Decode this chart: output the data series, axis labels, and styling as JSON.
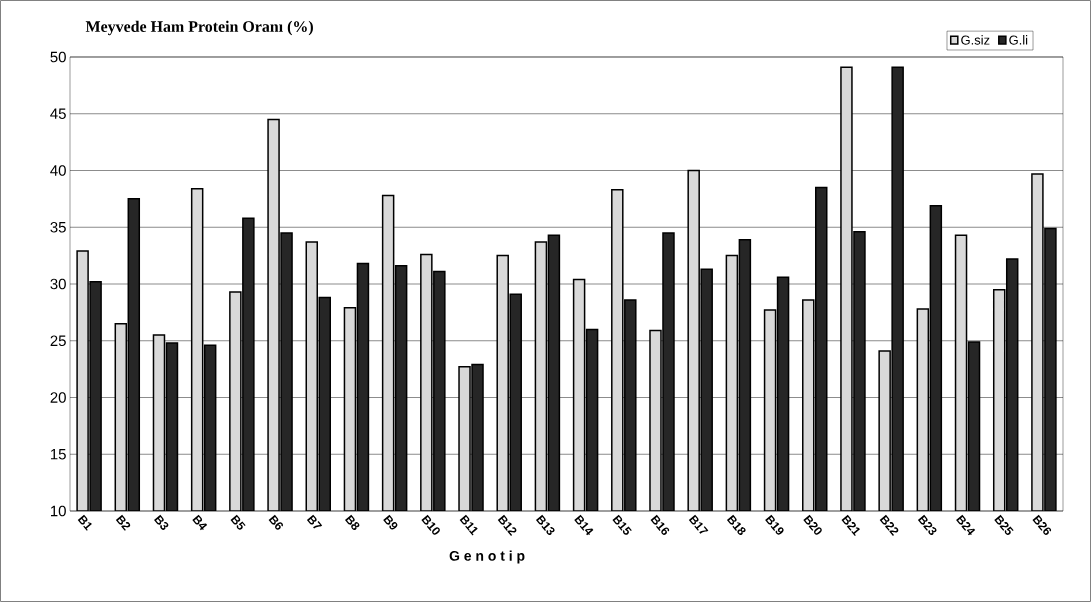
{
  "chart_data": {
    "type": "bar",
    "title": "Meyvede Ham Protein  Oranı (%)",
    "xlabel": "G e n o t i p",
    "categories": [
      "B1",
      "B2",
      "B3",
      "B4",
      "B5",
      "B6",
      "B7",
      "B8",
      "B9",
      "B10",
      "B11",
      "B12",
      "B13",
      "B14",
      "B15",
      "B16",
      "B17",
      "B18",
      "B19",
      "B20",
      "B21",
      "B22",
      "B23",
      "B24",
      "B25",
      "B26"
    ],
    "series": [
      {
        "name": "G.siz",
        "color": "#d9d9d9",
        "values": [
          32.9,
          26.5,
          25.5,
          38.4,
          29.3,
          44.5,
          33.7,
          27.9,
          37.8,
          32.6,
          22.7,
          32.5,
          33.7,
          30.4,
          38.3,
          25.9,
          40.0,
          32.5,
          27.7,
          28.6,
          49.1,
          24.1,
          27.8,
          34.3,
          29.5,
          39.7
        ]
      },
      {
        "name": "G.li",
        "color": "#262626",
        "values": [
          30.2,
          37.5,
          24.8,
          24.6,
          35.8,
          34.5,
          28.8,
          31.8,
          31.6,
          31.1,
          22.9,
          29.1,
          34.3,
          26.0,
          28.6,
          34.5,
          31.3,
          33.9,
          30.6,
          38.5,
          34.6,
          49.1,
          36.9,
          24.9,
          32.2,
          34.9
        ]
      }
    ],
    "ylim": [
      10,
      50
    ],
    "yticks": [
      10,
      15,
      20,
      25,
      30,
      35,
      40,
      45,
      50
    ],
    "grid": "y",
    "legend": "top right"
  }
}
